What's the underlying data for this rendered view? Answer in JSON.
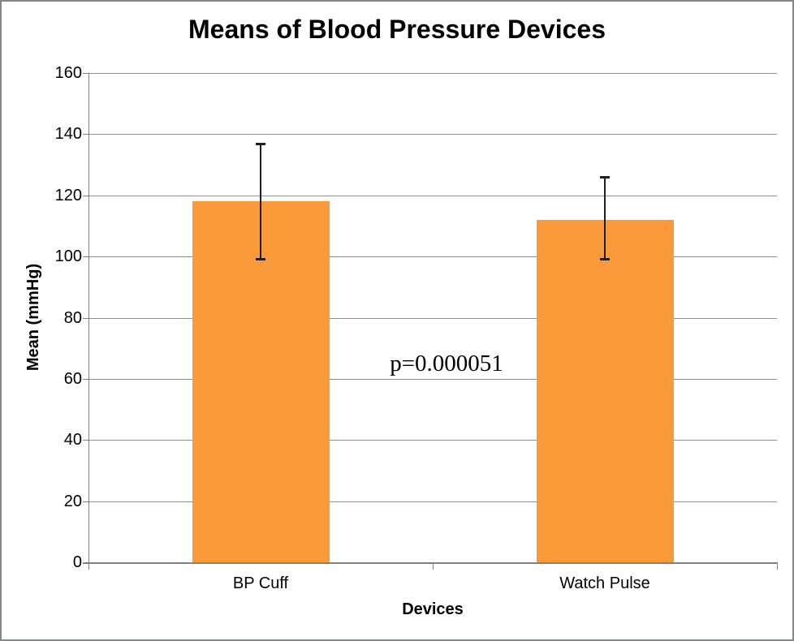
{
  "window": {
    "background": "#FFFFFF",
    "border_color": "#85878F"
  },
  "chart_data": {
    "type": "bar",
    "title": "Means of Blood Pressure Devices",
    "xlabel": "Devices",
    "ylabel": "Mean (mmHg)",
    "categories": [
      "BP Cuff",
      "Watch Pulse"
    ],
    "values": [
      118,
      112
    ],
    "error_bars": [
      {
        "low": 99,
        "high": 137
      },
      {
        "low": 99,
        "high": 126
      }
    ],
    "annotation": "p=0.000051",
    "ylim": [
      0,
      160
    ],
    "ytick_step": 20,
    "ytick_labels": [
      "0",
      "20",
      "40",
      "60",
      "80",
      "100",
      "120",
      "140",
      "160"
    ],
    "grid": "horizontal gridlines on",
    "legend_position": "none",
    "colors": {
      "bar": "#FB9A3B",
      "gridline": "#8E8E8E",
      "axis": "#808080",
      "error_bar": "#1F1F1F",
      "text": "#000000"
    }
  }
}
